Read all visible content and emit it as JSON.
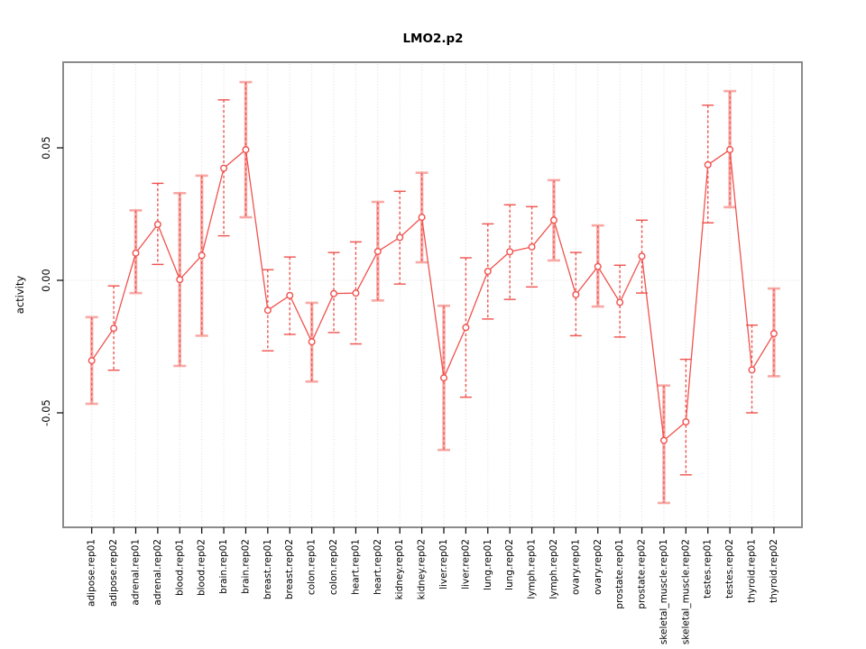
{
  "window": {
    "background": "#ffffff"
  },
  "chart_data": {
    "type": "line",
    "title": "LMO2.p2",
    "ylabel": "activity",
    "xlabel": "",
    "legend": null,
    "marker": "open-circle",
    "grid": {
      "vertical_guides": true,
      "zero_line_dotted": true,
      "horizontal_guides": false
    },
    "axis": {
      "ylim": [
        -0.093,
        0.082
      ],
      "yticks": [
        {
          "label": "0.05",
          "value": 0.05
        },
        {
          "label": "0.00",
          "value": 0.0
        },
        {
          "label": "-0.05",
          "value": -0.05
        }
      ]
    },
    "colors": {
      "series": "#f0524e",
      "errorbar_light": "#f8a9a5",
      "grid": "#dcdcdc",
      "box": "#8b8b8b",
      "text": "#000000",
      "marker_fill": "#ffffff"
    },
    "categories": [
      "adipose.rep01",
      "adipose.rep02",
      "adrenal.rep01",
      "adrenal.rep02",
      "blood.rep01",
      "blood.rep02",
      "brain.rep01",
      "brain.rep02",
      "breast.rep01",
      "breast.rep02",
      "colon.rep01",
      "colon.rep02",
      "heart.rep01",
      "heart.rep02",
      "kidney.rep01",
      "kidney.rep02",
      "liver.rep01",
      "liver.rep02",
      "lung.rep01",
      "lung.rep02",
      "lymph.rep01",
      "lymph.rep02",
      "ovary.rep01",
      "ovary.rep02",
      "prostate.rep01",
      "prostate.rep02",
      "skeletal_muscle.rep01",
      "skeletal_muscle.rep02",
      "testes.rep01",
      "testes.rep02",
      "thyroid.rep01",
      "thyroid.rep02"
    ],
    "points": [
      {
        "label": "adipose.rep01",
        "value": -0.0303,
        "lo": -0.0466,
        "hi": -0.0139,
        "bar_style": "solid"
      },
      {
        "label": "adipose.rep02",
        "value": -0.0181,
        "lo": -0.0339,
        "hi": -0.0021,
        "bar_style": "dashed"
      },
      {
        "label": "adrenal.rep01",
        "value": 0.0103,
        "lo": -0.0048,
        "hi": 0.0264,
        "bar_style": "solid"
      },
      {
        "label": "adrenal.rep02",
        "value": 0.0211,
        "lo": 0.006,
        "hi": 0.0366,
        "bar_style": "dashed"
      },
      {
        "label": "blood.rep01",
        "value": 0.0003,
        "lo": -0.0323,
        "hi": 0.0329,
        "bar_style": "solid"
      },
      {
        "label": "blood.rep02",
        "value": 0.0094,
        "lo": -0.0209,
        "hi": 0.0395,
        "bar_style": "solid"
      },
      {
        "label": "brain.rep01",
        "value": 0.0423,
        "lo": 0.0168,
        "hi": 0.0681,
        "bar_style": "dashed"
      },
      {
        "label": "brain.rep02",
        "value": 0.0493,
        "lo": 0.0238,
        "hi": 0.0748,
        "bar_style": "solid"
      },
      {
        "label": "breast.rep01",
        "value": -0.0113,
        "lo": -0.0266,
        "hi": 0.004,
        "bar_style": "dashed"
      },
      {
        "label": "breast.rep02",
        "value": -0.0057,
        "lo": -0.0204,
        "hi": 0.0088,
        "bar_style": "dashed"
      },
      {
        "label": "colon.rep01",
        "value": -0.0232,
        "lo": -0.0382,
        "hi": -0.0085,
        "bar_style": "solid"
      },
      {
        "label": "colon.rep02",
        "value": -0.005,
        "lo": -0.0197,
        "hi": 0.0105,
        "bar_style": "dashed"
      },
      {
        "label": "heart.rep01",
        "value": -0.0048,
        "lo": -0.024,
        "hi": 0.0145,
        "bar_style": "dashed"
      },
      {
        "label": "heart.rep02",
        "value": 0.0109,
        "lo": -0.0076,
        "hi": 0.0296,
        "bar_style": "solid"
      },
      {
        "label": "kidney.rep01",
        "value": 0.0162,
        "lo": -0.0014,
        "hi": 0.0336,
        "bar_style": "dashed"
      },
      {
        "label": "kidney.rep02",
        "value": 0.0238,
        "lo": 0.0068,
        "hi": 0.0406,
        "bar_style": "solid"
      },
      {
        "label": "liver.rep01",
        "value": -0.0368,
        "lo": -0.064,
        "hi": -0.0096,
        "bar_style": "solid"
      },
      {
        "label": "liver.rep02",
        "value": -0.0178,
        "lo": -0.0441,
        "hi": 0.0085,
        "bar_style": "dashed"
      },
      {
        "label": "lung.rep01",
        "value": 0.0034,
        "lo": -0.0146,
        "hi": 0.0213,
        "bar_style": "dashed"
      },
      {
        "label": "lung.rep02",
        "value": 0.0108,
        "lo": -0.0072,
        "hi": 0.0285,
        "bar_style": "dashed"
      },
      {
        "label": "lymph.rep01",
        "value": 0.0126,
        "lo": -0.0025,
        "hi": 0.0278,
        "bar_style": "dashed"
      },
      {
        "label": "lymph.rep02",
        "value": 0.0227,
        "lo": 0.0075,
        "hi": 0.0378,
        "bar_style": "solid"
      },
      {
        "label": "ovary.rep01",
        "value": -0.0054,
        "lo": -0.0209,
        "hi": 0.0105,
        "bar_style": "dashed"
      },
      {
        "label": "ovary.rep02",
        "value": 0.0052,
        "lo": -0.0099,
        "hi": 0.0207,
        "bar_style": "solid"
      },
      {
        "label": "prostate.rep01",
        "value": -0.0083,
        "lo": -0.0214,
        "hi": 0.0057,
        "bar_style": "dashed"
      },
      {
        "label": "prostate.rep02",
        "value": 0.0091,
        "lo": -0.0048,
        "hi": 0.0227,
        "bar_style": "dashed"
      },
      {
        "label": "skeletal_muscle.rep01",
        "value": -0.0604,
        "lo": -0.084,
        "hi": -0.0397,
        "bar_style": "solid"
      },
      {
        "label": "skeletal_muscle.rep02",
        "value": -0.0534,
        "lo": -0.0734,
        "hi": -0.0298,
        "bar_style": "dashed"
      },
      {
        "label": "testes.rep01",
        "value": 0.0436,
        "lo": 0.0217,
        "hi": 0.0661,
        "bar_style": "dashed"
      },
      {
        "label": "testes.rep02",
        "value": 0.0493,
        "lo": 0.0276,
        "hi": 0.0714,
        "bar_style": "solid"
      },
      {
        "label": "thyroid.rep01",
        "value": -0.0338,
        "lo": -0.05,
        "hi": -0.0169,
        "bar_style": "dashed"
      },
      {
        "label": "thyroid.rep02",
        "value": -0.0201,
        "lo": -0.0362,
        "hi": -0.0031,
        "bar_style": "solid"
      }
    ]
  }
}
